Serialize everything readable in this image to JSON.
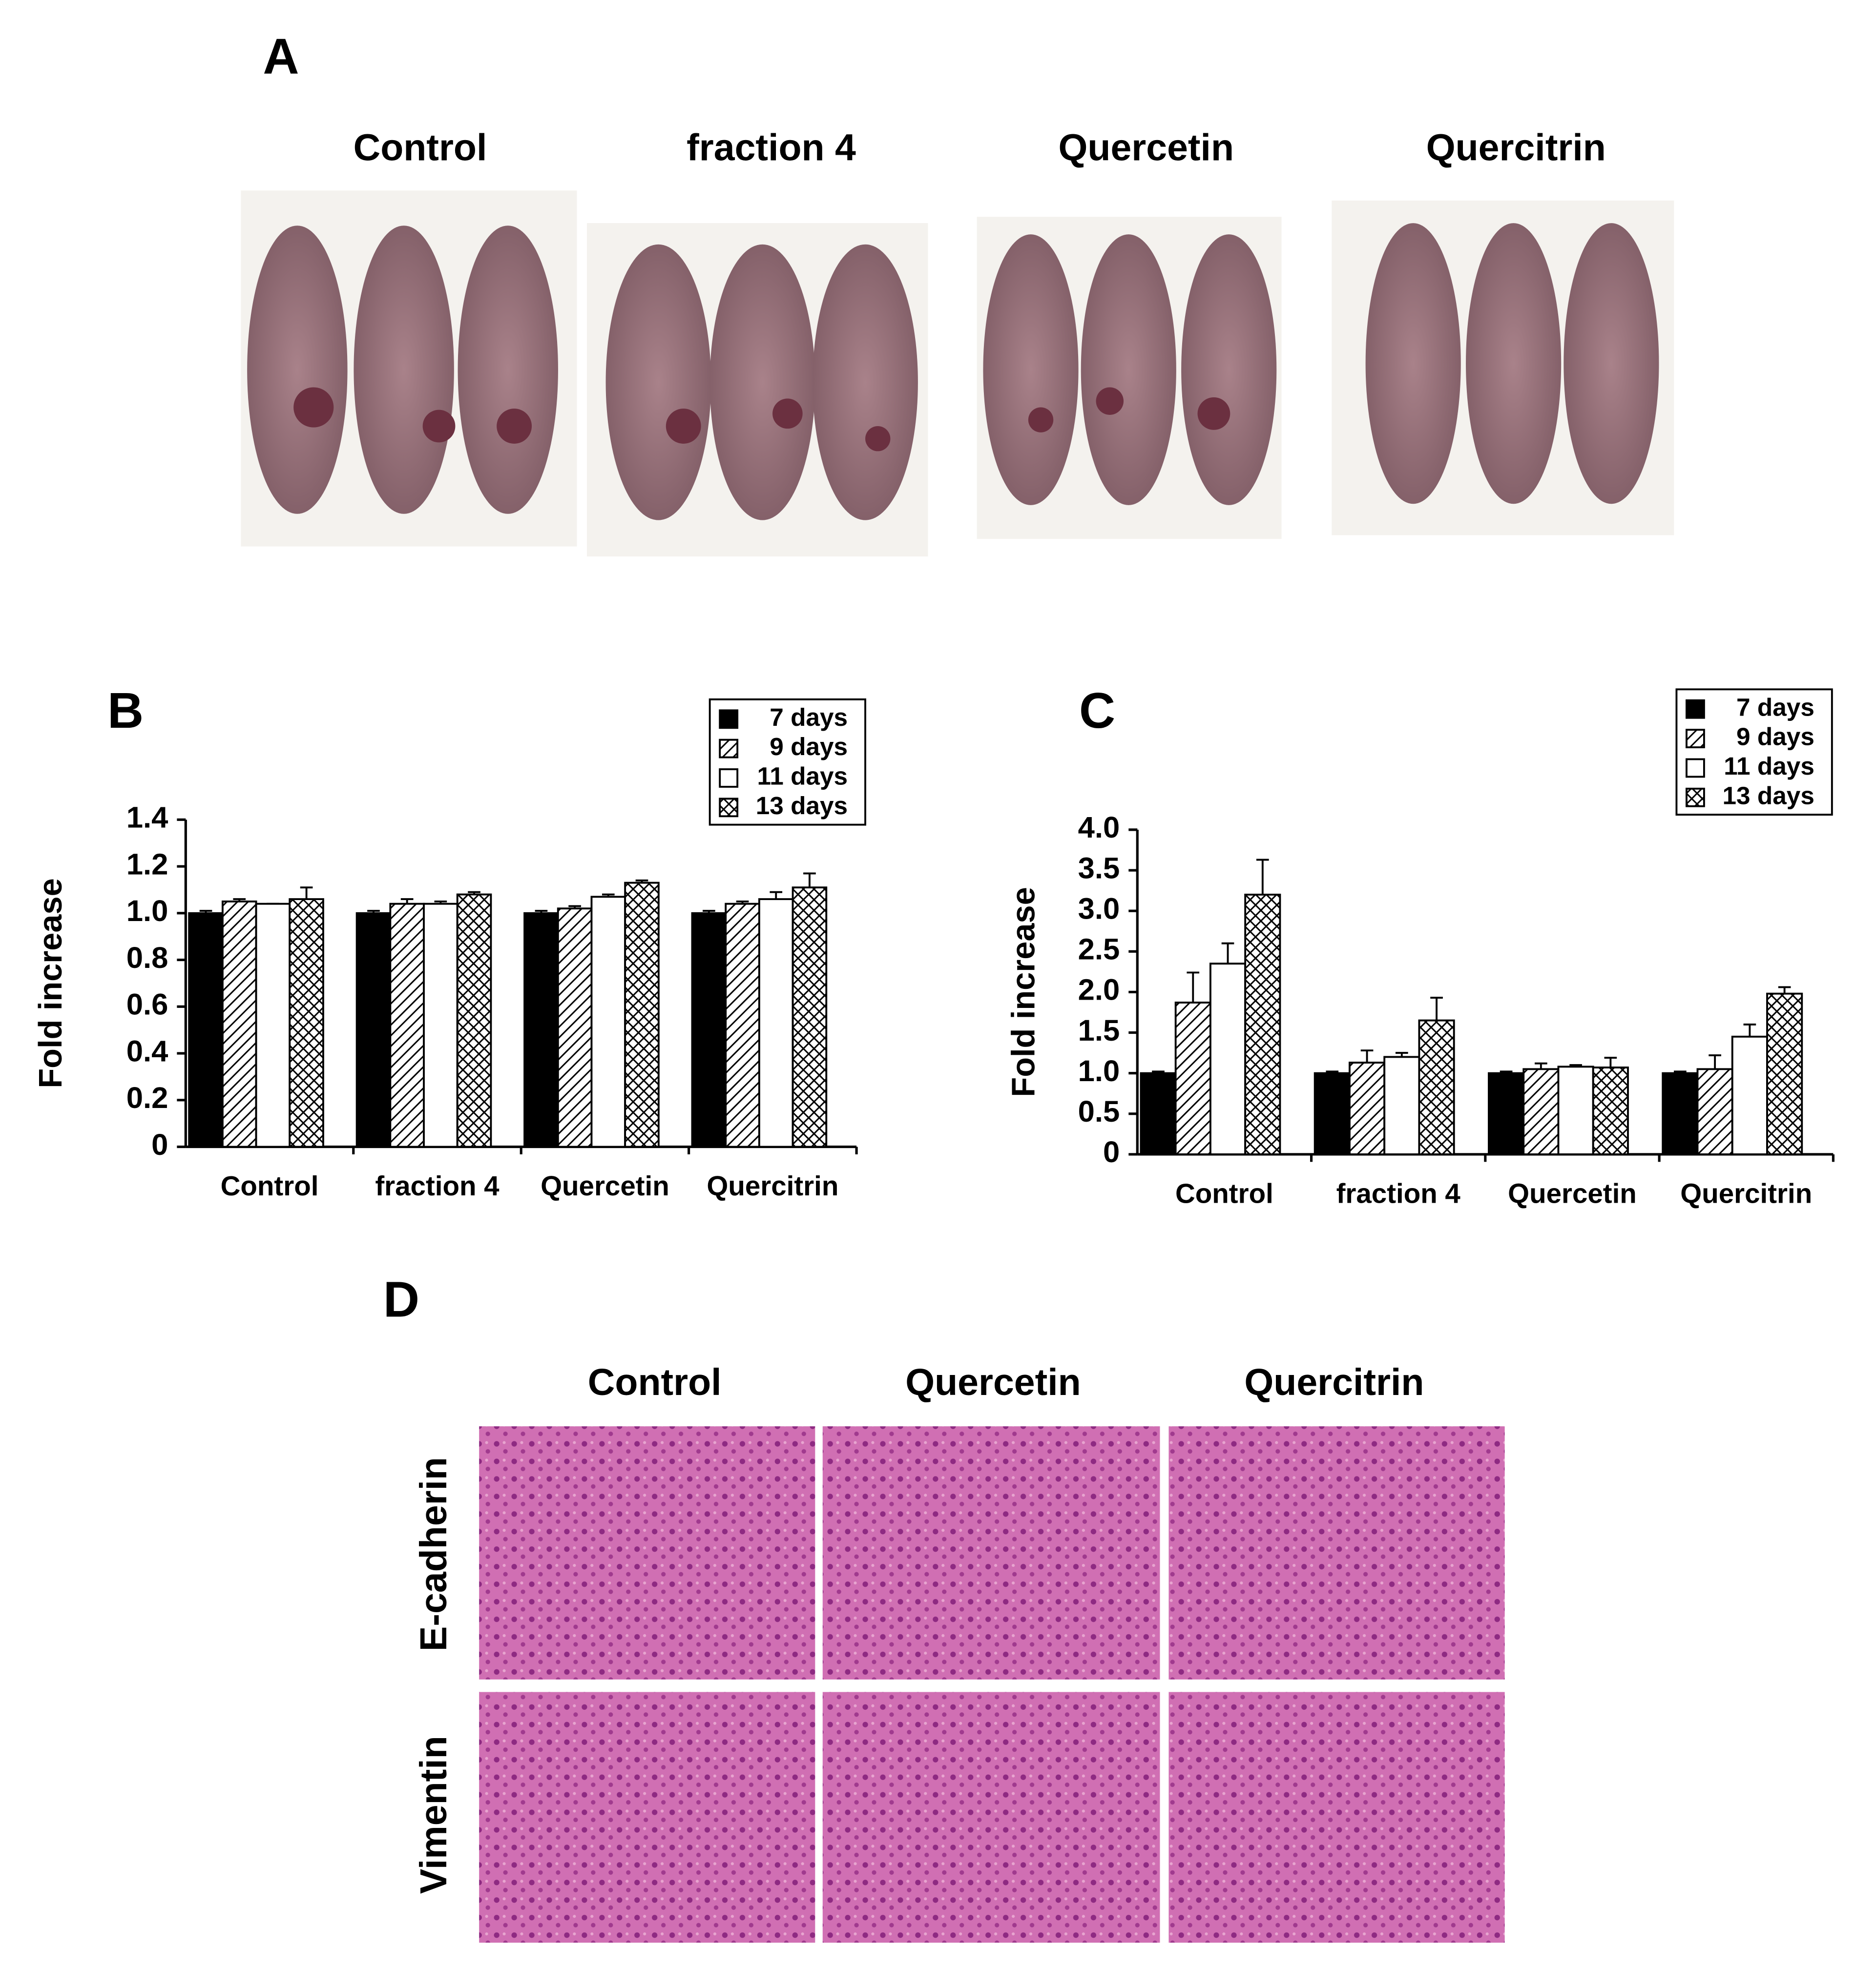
{
  "panel_a": {
    "label": "A",
    "groups": [
      "Control",
      "fraction 4",
      "Quercetin",
      "Quercitrin"
    ]
  },
  "chart_data": [
    {
      "type": "bar",
      "label": "B",
      "y_label": "Fold increase",
      "categories": [
        "Control",
        "fraction 4",
        "Quercetin",
        "Quercitrin"
      ],
      "series": [
        {
          "name": "7 days",
          "color": "#000000",
          "pattern": "solid",
          "values": [
            1.0,
            1.0,
            1.0,
            1.0
          ],
          "errors": [
            0.01,
            0.01,
            0.01,
            0.01
          ]
        },
        {
          "name": "9 days",
          "color": "#000000",
          "pattern": "diagonal",
          "values": [
            1.05,
            1.04,
            1.02,
            1.04
          ],
          "errors": [
            0.01,
            0.02,
            0.01,
            0.01
          ]
        },
        {
          "name": "11 days",
          "color": "#000000",
          "pattern": "open",
          "values": [
            1.04,
            1.04,
            1.07,
            1.06
          ],
          "errors": [
            0.0,
            0.01,
            0.01,
            0.03
          ]
        },
        {
          "name": "13 days",
          "color": "#000000",
          "pattern": "crosshatch",
          "values": [
            1.06,
            1.08,
            1.13,
            1.11
          ],
          "errors": [
            0.05,
            0.01,
            0.01,
            0.06
          ]
        }
      ],
      "ylim": [
        0,
        1.4
      ],
      "yticks": [
        0,
        0.2,
        0.4,
        0.6,
        0.8,
        {
          "value": 1,
          "label": "1.0"
        },
        1.2,
        1.4
      ],
      "legend": "top-right"
    },
    {
      "type": "bar",
      "label": "C",
      "y_label": "Fold increase",
      "categories": [
        "Control",
        "fraction 4",
        "Quercetin",
        "Quercitrin"
      ],
      "series": [
        {
          "name": "7 days",
          "color": "#000000",
          "pattern": "solid",
          "values": [
            1.0,
            1.0,
            1.0,
            1.0
          ],
          "errors": [
            0.02,
            0.02,
            0.02,
            0.02
          ]
        },
        {
          "name": "9 days",
          "color": "#000000",
          "pattern": "diagonal",
          "values": [
            1.87,
            1.13,
            1.05,
            1.05
          ],
          "errors": [
            0.37,
            0.15,
            0.07,
            0.17
          ]
        },
        {
          "name": "11 days",
          "color": "#000000",
          "pattern": "open",
          "values": [
            2.35,
            1.2,
            1.08,
            1.45
          ],
          "errors": [
            0.25,
            0.05,
            0.02,
            0.15
          ]
        },
        {
          "name": "13 days",
          "color": "#000000",
          "pattern": "crosshatch",
          "values": [
            3.2,
            1.65,
            1.07,
            1.98
          ],
          "errors": [
            0.43,
            0.28,
            0.12,
            0.08
          ]
        }
      ],
      "ylim": [
        0,
        4
      ],
      "yticks": [
        0,
        0.5,
        {
          "value": 1,
          "label": "1.0"
        },
        1.5,
        {
          "value": 2,
          "label": "2.0"
        },
        2.5,
        {
          "value": 3,
          "label": "3.0"
        },
        3.5,
        {
          "value": 4,
          "label": "4.0"
        }
      ],
      "legend": "top-right"
    }
  ],
  "panel_d": {
    "label": "D",
    "columns": [
      "Control",
      "Quercetin",
      "Quercitrin"
    ],
    "rows": [
      "E-cadherin",
      "Vimentin"
    ]
  }
}
